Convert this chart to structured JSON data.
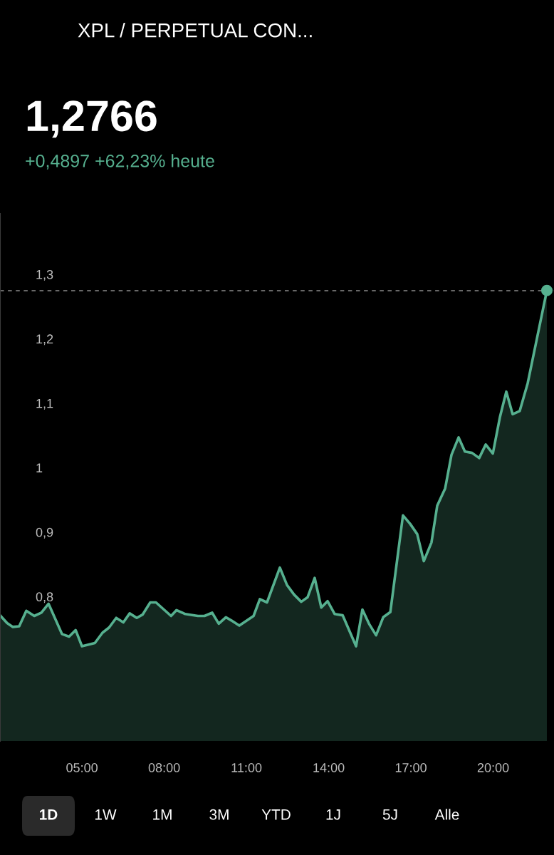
{
  "chart_data": {
    "type": "area",
    "title": "XPL / PERPETUAL CON...",
    "subtitle": "1,2766",
    "annotations": [
      "+0,4897 +62,23% heute",
      "1D",
      "1W",
      "1M",
      "3M",
      "YTD",
      "1J",
      "5J",
      "Alle"
    ],
    "x": [
      2.01,
      2.27,
      2.48,
      2.71,
      2.97,
      3.26,
      3.52,
      3.78,
      4.27,
      4.53,
      4.77,
      5.0,
      5.47,
      5.75,
      5.99,
      6.25,
      6.51,
      6.74,
      7.0,
      7.21,
      7.49,
      7.7,
      8.25,
      8.45,
      8.77,
      9.23,
      9.47,
      9.75,
      9.99,
      10.25,
      10.45,
      10.74,
      11.26,
      11.49,
      11.75,
      12.22,
      12.48,
      12.74,
      13.0,
      13.23,
      13.49,
      13.73,
      13.96,
      14.22,
      14.51,
      15.0,
      15.23,
      15.47,
      15.73,
      15.99,
      16.25,
      16.71,
      16.97,
      17.23,
      17.47,
      17.75,
      17.96,
      18.25,
      18.48,
      18.74,
      18.97,
      19.23,
      19.49,
      19.73,
      19.99,
      20.25,
      20.48,
      20.71,
      20.97,
      21.26,
      21.96
    ],
    "series": [
      {
        "color": "#56b08f",
        "values": [
          0.773,
          0.761,
          0.755,
          0.756,
          0.78,
          0.772,
          0.777,
          0.791,
          0.744,
          0.74,
          0.75,
          0.725,
          0.73,
          0.746,
          0.754,
          0.769,
          0.762,
          0.776,
          0.769,
          0.774,
          0.793,
          0.793,
          0.772,
          0.781,
          0.775,
          0.772,
          0.772,
          0.777,
          0.76,
          0.77,
          0.765,
          0.757,
          0.772,
          0.798,
          0.793,
          0.847,
          0.82,
          0.805,
          0.794,
          0.801,
          0.831,
          0.785,
          0.795,
          0.775,
          0.773,
          0.725,
          0.782,
          0.76,
          0.742,
          0.77,
          0.778,
          0.928,
          0.915,
          0.899,
          0.857,
          0.886,
          0.943,
          0.97,
          1.022,
          1.049,
          1.027,
          1.025,
          1.017,
          1.038,
          1.024,
          1.081,
          1.12,
          1.085,
          1.09,
          1.133,
          1.277
        ]
      },
      {
        "type": "scatter",
        "color": "#56b08f",
        "x": [
          21.96
        ],
        "values": [
          1.277
        ],
        "marker": "circle"
      }
    ],
    "xlim": [
      2.01,
      22.22
    ],
    "ylim": [
      0.578,
      1.396
    ],
    "xticks": [
      {
        "value": 5,
        "label": "05:00"
      },
      {
        "value": 8,
        "label": "08:00"
      },
      {
        "value": 11,
        "label": "11:00"
      },
      {
        "value": 14,
        "label": "14:00"
      },
      {
        "value": 17,
        "label": "17:00"
      },
      {
        "value": 20,
        "label": "20:00"
      }
    ],
    "yticks": [
      {
        "value": 0.8,
        "label": "0,8"
      },
      {
        "value": 0.9,
        "label": "0,9"
      },
      {
        "value": 1,
        "label": "1"
      },
      {
        "value": 1.1,
        "label": "1,1"
      },
      {
        "value": 1.2,
        "label": "1,2"
      },
      {
        "value": 1.3,
        "label": "1,3"
      }
    ],
    "ref_lines": [
      {
        "axis": "y",
        "value": 1.2766,
        "color": "#8a8a8a",
        "line_style": "dashed"
      }
    ],
    "grid": false,
    "legend": false
  }
}
